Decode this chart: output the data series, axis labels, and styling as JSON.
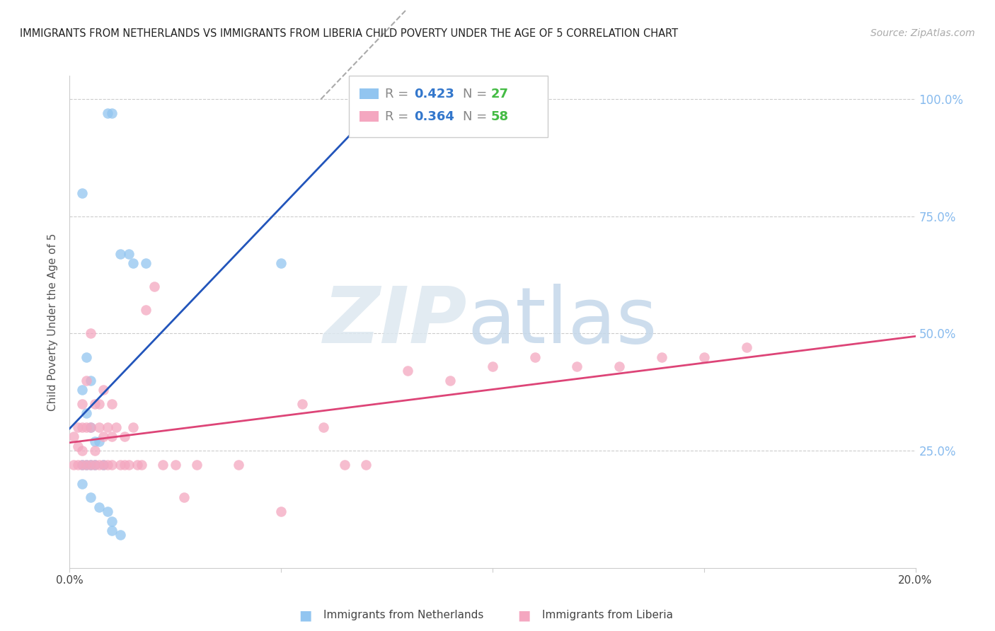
{
  "title": "IMMIGRANTS FROM NETHERLANDS VS IMMIGRANTS FROM LIBERIA CHILD POVERTY UNDER THE AGE OF 5 CORRELATION CHART",
  "source": "Source: ZipAtlas.com",
  "ylabel": "Child Poverty Under the Age of 5",
  "legend_blue_r": "0.423",
  "legend_blue_n": "27",
  "legend_pink_r": "0.364",
  "legend_pink_n": "58",
  "blue_color": "#92C5F0",
  "pink_color": "#F4A7C0",
  "blue_line_color": "#2255BB",
  "pink_line_color": "#DD4477",
  "background_color": "#FFFFFF",
  "xlim": [
    0.0,
    0.2
  ],
  "ylim": [
    0.0,
    1.05
  ],
  "grid_color": "#CCCCCC",
  "blue_x": [
    0.009,
    0.01,
    0.003,
    0.014,
    0.05,
    0.012,
    0.015,
    0.018,
    0.004,
    0.005,
    0.003,
    0.004,
    0.005,
    0.006,
    0.007,
    0.003,
    0.004,
    0.005,
    0.006,
    0.008,
    0.003,
    0.005,
    0.007,
    0.009,
    0.01,
    0.01,
    0.012
  ],
  "blue_y": [
    0.97,
    0.97,
    0.8,
    0.67,
    0.65,
    0.67,
    0.65,
    0.65,
    0.45,
    0.4,
    0.38,
    0.33,
    0.3,
    0.27,
    0.27,
    0.22,
    0.22,
    0.22,
    0.22,
    0.22,
    0.18,
    0.15,
    0.13,
    0.12,
    0.1,
    0.08,
    0.07
  ],
  "pink_x": [
    0.001,
    0.001,
    0.002,
    0.002,
    0.002,
    0.003,
    0.003,
    0.003,
    0.003,
    0.004,
    0.004,
    0.004,
    0.005,
    0.005,
    0.005,
    0.006,
    0.006,
    0.006,
    0.007,
    0.007,
    0.007,
    0.008,
    0.008,
    0.008,
    0.009,
    0.009,
    0.01,
    0.01,
    0.01,
    0.011,
    0.012,
    0.013,
    0.013,
    0.014,
    0.015,
    0.016,
    0.017,
    0.018,
    0.02,
    0.022,
    0.025,
    0.027,
    0.03,
    0.04,
    0.05,
    0.055,
    0.06,
    0.065,
    0.07,
    0.08,
    0.09,
    0.1,
    0.11,
    0.12,
    0.13,
    0.14,
    0.15,
    0.16
  ],
  "pink_y": [
    0.22,
    0.28,
    0.22,
    0.26,
    0.3,
    0.22,
    0.25,
    0.3,
    0.35,
    0.22,
    0.3,
    0.4,
    0.22,
    0.3,
    0.5,
    0.22,
    0.35,
    0.25,
    0.3,
    0.35,
    0.22,
    0.22,
    0.28,
    0.38,
    0.22,
    0.3,
    0.22,
    0.28,
    0.35,
    0.3,
    0.22,
    0.22,
    0.28,
    0.22,
    0.3,
    0.22,
    0.22,
    0.55,
    0.6,
    0.22,
    0.22,
    0.15,
    0.22,
    0.22,
    0.12,
    0.35,
    0.3,
    0.22,
    0.22,
    0.42,
    0.4,
    0.43,
    0.45,
    0.43,
    0.43,
    0.45,
    0.45,
    0.47
  ]
}
